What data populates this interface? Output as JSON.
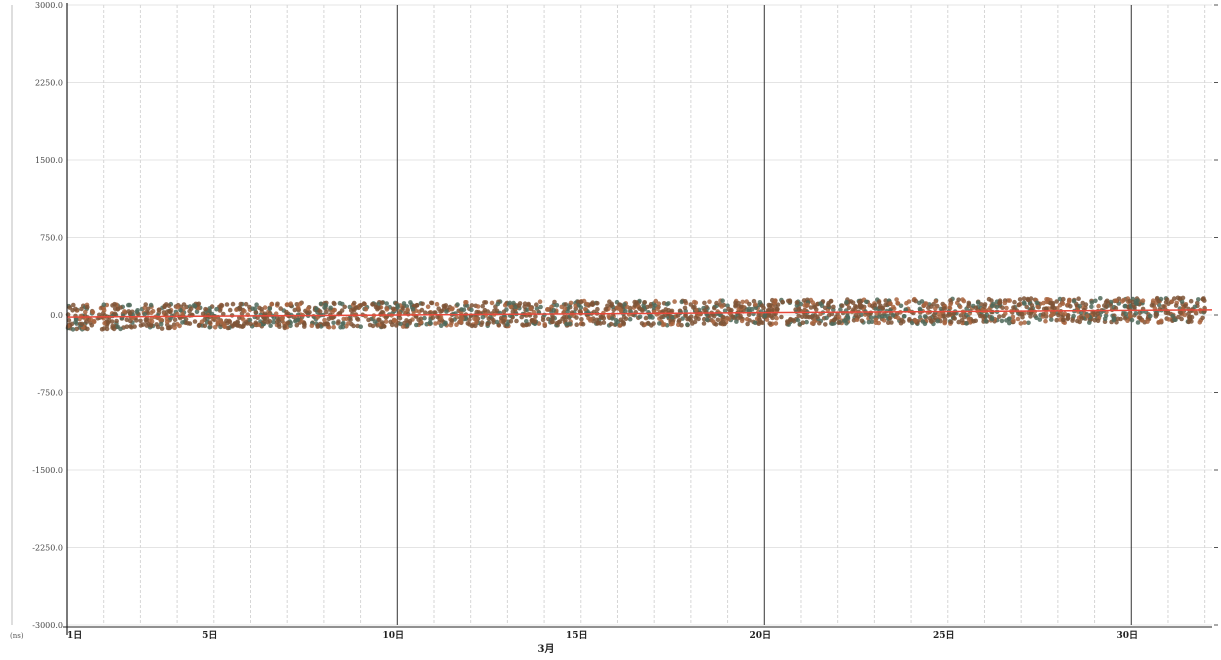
{
  "chart_data": {
    "type": "scatter",
    "title": "",
    "y_unit_label": "(ns)",
    "x_group_label": "3月",
    "yticks": [
      3000.0,
      2250.0,
      1500.0,
      750.0,
      0.0,
      -750.0,
      -1500.0,
      -2250.0,
      -3000.0
    ],
    "ytick_labels": [
      "3000.0",
      "2250.0",
      "1500.0",
      "750.0",
      "0.0",
      "-750.0",
      "-1500.0",
      "-2250.0",
      "-3000.0"
    ],
    "ylim": [
      -3000.0,
      3000.0
    ],
    "xlim": [
      1,
      32.2
    ],
    "xticks": [
      1,
      5,
      10,
      15,
      20,
      25,
      30
    ],
    "xtick_labels": [
      "1日",
      "5日",
      "10日",
      "15日",
      "20日",
      "25日",
      "30日"
    ],
    "grid": true,
    "series": [
      {
        "kind": "scatter",
        "color": "#8a5a3c",
        "x": [
          1,
          2,
          3,
          4,
          5,
          6,
          7,
          8,
          9,
          10,
          11,
          12,
          13,
          14,
          15,
          16,
          17,
          18,
          19,
          20,
          21,
          22,
          23,
          24,
          25,
          26,
          27,
          28,
          29,
          30,
          31,
          32
        ],
        "y": [
          -20,
          -15,
          -12,
          -10,
          -8,
          -5,
          -2,
          0,
          3,
          5,
          8,
          10,
          12,
          14,
          16,
          18,
          20,
          22,
          24,
          26,
          28,
          30,
          32,
          34,
          36,
          38,
          40,
          42,
          44,
          46,
          48,
          50
        ],
        "spread": 120
      },
      {
        "kind": "line",
        "color": "#e8483a",
        "x": [
          1,
          32.2
        ],
        "y": [
          -20,
          50
        ]
      }
    ]
  }
}
